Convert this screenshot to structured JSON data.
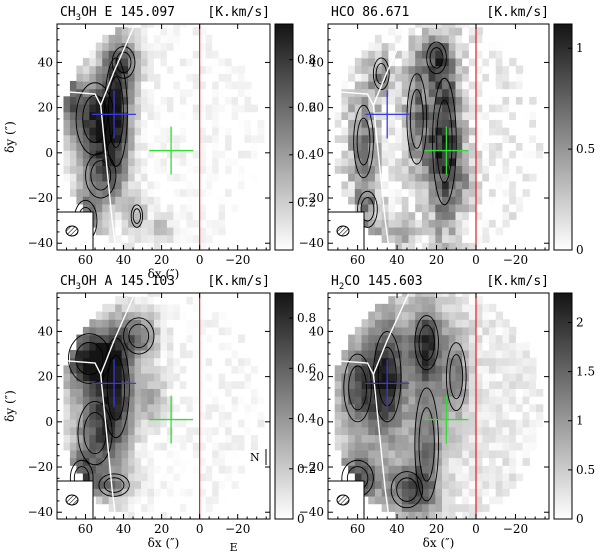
{
  "chart_data": [
    {
      "type": "heatmap",
      "title": "CH3OH E 145.097",
      "title_main": "CH",
      "title_sub": "3",
      "title_rest": "OH E 145.097",
      "unit": "[K.km/s]",
      "xlabel": "δx (″)",
      "ylabel": "δy (″)",
      "xlim": [
        75,
        -37
      ],
      "ylim": [
        -43,
        57
      ],
      "x_ticks": [
        60,
        40,
        20,
        0,
        -20
      ],
      "y_ticks": [
        40,
        20,
        0,
        -20,
        -40
      ],
      "colorbar_range": [
        0,
        0.95
      ],
      "colorbar_ticks": [
        0.2,
        0.4,
        0.6,
        0.8
      ],
      "blue_cross": [
        45,
        17
      ],
      "green_cross": [
        15,
        1
      ],
      "red_line_x": 0
    },
    {
      "type": "heatmap",
      "title": "HCO 86.671",
      "title_main": "HCO 86.671",
      "title_sub": "",
      "title_rest": "",
      "unit": "[K.km/s]",
      "xlabel": "",
      "ylabel": "",
      "xlim": [
        75,
        -37
      ],
      "ylim": [
        -43,
        57
      ],
      "x_ticks": [
        60,
        40,
        20,
        0,
        -20
      ],
      "y_ticks": [
        40,
        20,
        0,
        -20,
        -40
      ],
      "colorbar_range": [
        0,
        1.12
      ],
      "colorbar_ticks": [
        0,
        0.5,
        1
      ],
      "blue_cross": [
        45,
        17
      ],
      "green_cross": [
        15,
        1
      ],
      "red_line_x": 0
    },
    {
      "type": "heatmap",
      "title": "CH3OH A 145.103",
      "title_main": "CH",
      "title_sub": "3",
      "title_rest": "OH A 145.103",
      "unit": "[K.km/s]",
      "xlabel": "δx (″)",
      "ylabel": "δy (″)",
      "xlim": [
        75,
        -37
      ],
      "ylim": [
        -43,
        57
      ],
      "x_ticks": [
        60,
        40,
        20,
        0,
        -20
      ],
      "y_ticks": [
        40,
        20,
        0,
        -20,
        -40
      ],
      "colorbar_range": [
        0,
        0.9
      ],
      "colorbar_ticks": [
        0,
        0.2,
        0.4,
        0.6,
        0.8
      ],
      "blue_cross": [
        45,
        17
      ],
      "green_cross": [
        15,
        1
      ],
      "red_line_x": 0,
      "compass": [
        "N",
        "E"
      ]
    },
    {
      "type": "heatmap",
      "title": "H2CO 145.603",
      "title_main": "H",
      "title_sub": "2",
      "title_rest": "CO 145.603",
      "unit": "[K.km/s]",
      "xlabel": "δx (″)",
      "ylabel": "",
      "xlim": [
        75,
        -37
      ],
      "ylim": [
        -43,
        57
      ],
      "x_ticks": [
        60,
        40,
        20,
        0,
        -20
      ],
      "y_ticks": [
        40,
        20,
        0,
        -20,
        -40
      ],
      "colorbar_range": [
        0,
        2.3
      ],
      "colorbar_ticks": [
        0,
        0.5,
        1,
        1.5,
        2
      ],
      "blue_cross": [
        45,
        17
      ],
      "green_cross": [
        15,
        1
      ],
      "red_line_x": 0
    }
  ]
}
